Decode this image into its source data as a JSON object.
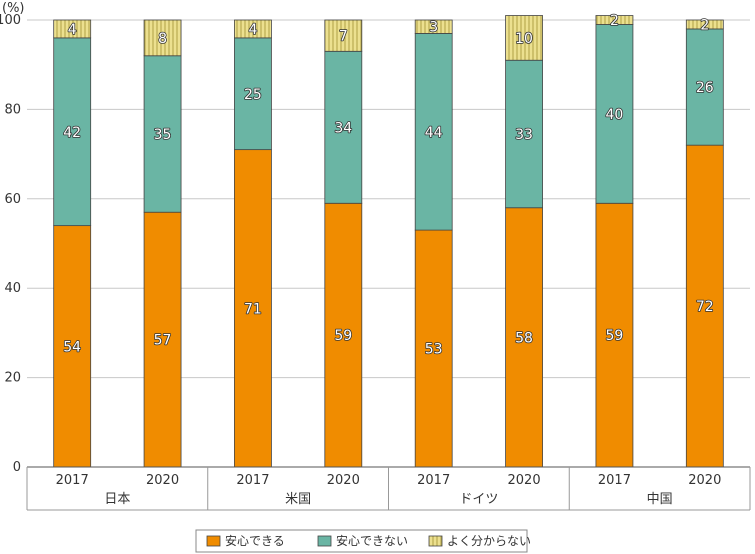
{
  "chart_data": {
    "type": "bar",
    "stacked": true,
    "unit_label": "(%)",
    "ylim": [
      0,
      100
    ],
    "yticks": [
      0,
      20,
      40,
      60,
      80,
      100
    ],
    "grid": true,
    "legend_position": "bottom",
    "groups": [
      {
        "name": "日本",
        "years": [
          "2017",
          "2020"
        ]
      },
      {
        "name": "米国",
        "years": [
          "2017",
          "2020"
        ]
      },
      {
        "name": "ドイツ",
        "years": [
          "2017",
          "2020"
        ]
      },
      {
        "name": "中国",
        "years": [
          "2017",
          "2020"
        ]
      }
    ],
    "categories": [
      "日本 2017",
      "日本 2020",
      "米国 2017",
      "米国 2020",
      "ドイツ 2017",
      "ドイツ 2020",
      "中国 2017",
      "中国 2020"
    ],
    "series": [
      {
        "name": "安心できる",
        "color": "#f08c00",
        "values": [
          54,
          57,
          71,
          59,
          53,
          58,
          59,
          72
        ]
      },
      {
        "name": "安心できない",
        "color": "#6ab5a4",
        "values": [
          42,
          35,
          25,
          34,
          44,
          33,
          40,
          26
        ]
      },
      {
        "name": "よく分からない",
        "color": "#e9dc8a",
        "pattern": "vertical-stripes",
        "values": [
          4,
          8,
          4,
          7,
          3,
          10,
          2,
          2
        ]
      }
    ]
  }
}
